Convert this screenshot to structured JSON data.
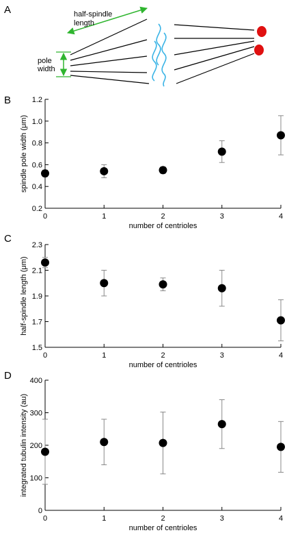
{
  "schematic": {
    "letter": "A",
    "length_label_line1": "half-spindle",
    "length_label_line2": "length",
    "width_label_line1": "pole",
    "width_label_line2": "width",
    "arrow_color": "#2fb52f",
    "wave_color": "#3ab4e6",
    "chromosome_color": "#e01010"
  },
  "chart_data": [
    {
      "panel": "B",
      "type": "scatter",
      "xlabel": "number of centrioles",
      "ylabel": "spindle pole width (μm)",
      "xlim": [
        0,
        4
      ],
      "ylim": [
        0.2,
        1.2
      ],
      "xticks": [
        0,
        1,
        2,
        3,
        4
      ],
      "yticks": [
        0.2,
        0.4,
        0.6,
        0.8,
        1.0,
        1.2
      ],
      "ytick_labels": [
        "0.2",
        "0.4",
        "0.6",
        "0.8",
        "1.0",
        "1.2"
      ],
      "x": [
        0,
        1,
        2,
        3,
        4
      ],
      "y": [
        0.52,
        0.54,
        0.55,
        0.72,
        0.87
      ],
      "err": [
        0.03,
        0.06,
        0.03,
        0.1,
        0.18
      ]
    },
    {
      "panel": "C",
      "type": "scatter",
      "xlabel": "number of centrioles",
      "ylabel": "half-spindle length (μm)",
      "xlim": [
        0,
        4
      ],
      "ylim": [
        1.5,
        2.3
      ],
      "xticks": [
        0,
        1,
        2,
        3,
        4
      ],
      "yticks": [
        1.5,
        1.7,
        1.9,
        2.1,
        2.3
      ],
      "ytick_labels": [
        "1.5",
        "1.7",
        "1.9",
        "2.1",
        "2.3"
      ],
      "x": [
        0,
        1,
        2,
        3,
        4
      ],
      "y": [
        2.16,
        2.0,
        1.99,
        1.96,
        1.71
      ],
      "err": [
        0.04,
        0.1,
        0.05,
        0.14,
        0.16
      ]
    },
    {
      "panel": "D",
      "type": "scatter",
      "xlabel": "number of centrioles",
      "ylabel": "integrated tubulin intensity (au)",
      "xlim": [
        0,
        4
      ],
      "ylim": [
        0,
        400
      ],
      "xticks": [
        0,
        1,
        2,
        3,
        4
      ],
      "yticks": [
        0,
        100,
        200,
        300,
        400
      ],
      "ytick_labels": [
        "0",
        "100",
        "200",
        "300",
        "400"
      ],
      "x": [
        0,
        1,
        2,
        3,
        4
      ],
      "y": [
        180,
        210,
        207,
        265,
        195
      ],
      "err": [
        100,
        70,
        95,
        75,
        78
      ]
    }
  ]
}
